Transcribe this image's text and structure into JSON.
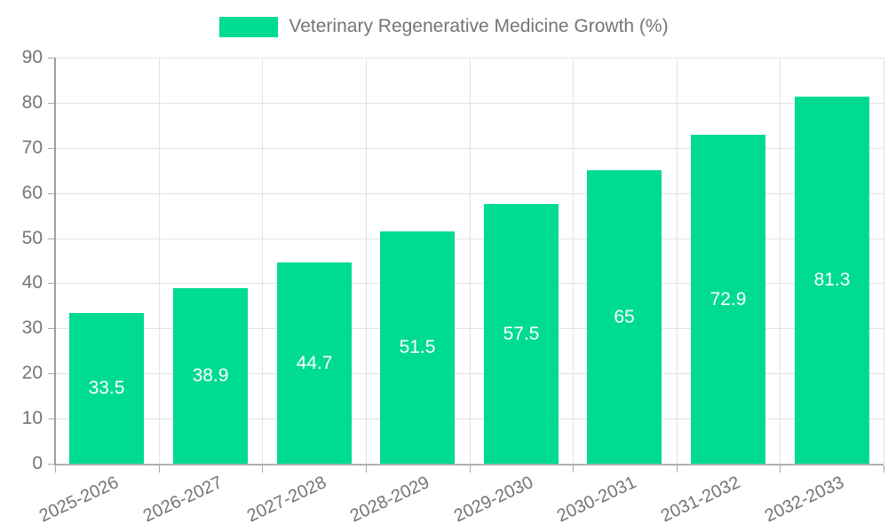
{
  "legend": {
    "label": "Veterinary Regenerative Medicine Growth (%)",
    "position": "top"
  },
  "chart_data": {
    "type": "bar",
    "title": "Veterinary Regenerative Medicine Growth (%)",
    "categories": [
      "2025-2026",
      "2026-2027",
      "2027-2028",
      "2028-2029",
      "2029-2030",
      "2030-2031",
      "2031-2032",
      "2032-2033"
    ],
    "values": [
      33.5,
      38.9,
      44.7,
      51.5,
      57.5,
      65,
      72.9,
      81.3
    ],
    "series_name": "Veterinary Regenerative Medicine Growth (%)",
    "xlabel": "",
    "ylabel": "",
    "ylim": [
      0,
      90
    ],
    "ytick_step": 10,
    "yticks": [
      0,
      10,
      20,
      30,
      40,
      50,
      60,
      70,
      80,
      90
    ],
    "grid": true,
    "legend_position": "top",
    "value_labels": "inside-center"
  },
  "colors": {
    "bar": "#00db92",
    "value_label": "#ffffff",
    "axis_text": "#757575",
    "legend_text": "#757575",
    "gridline": "#e3e3e3",
    "axis_line_y": "#9e9e9e",
    "axis_line_x": "#b0b0b0",
    "background": "#ffffff"
  }
}
